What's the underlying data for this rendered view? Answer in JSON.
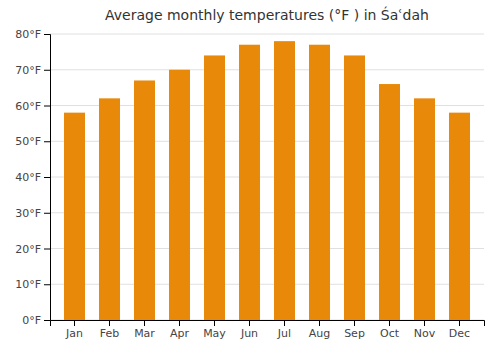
{
  "chart_data": {
    "type": "bar",
    "title": "Average monthly temperatures (°F ) in Śaʿdah",
    "categories": [
      "Jan",
      "Feb",
      "Mar",
      "Apr",
      "May",
      "Jun",
      "Jul",
      "Aug",
      "Sep",
      "Oct",
      "Nov",
      "Dec"
    ],
    "values": [
      58,
      62,
      67,
      70,
      74,
      77,
      78,
      77,
      74,
      66,
      62,
      58
    ],
    "color": "#E8890A",
    "ylim": [
      0,
      80
    ],
    "yticks": [
      {
        "value": 0,
        "label": "0°F"
      },
      {
        "value": 10,
        "label": "10°F"
      },
      {
        "value": 20,
        "label": "20°F"
      },
      {
        "value": 30,
        "label": "30°F"
      },
      {
        "value": 40,
        "label": "40°F"
      },
      {
        "value": 50,
        "label": "50°F"
      },
      {
        "value": 60,
        "label": "60°F"
      },
      {
        "value": 70,
        "label": "70°F"
      },
      {
        "value": 80,
        "label": "80°F"
      }
    ],
    "grid": true
  }
}
